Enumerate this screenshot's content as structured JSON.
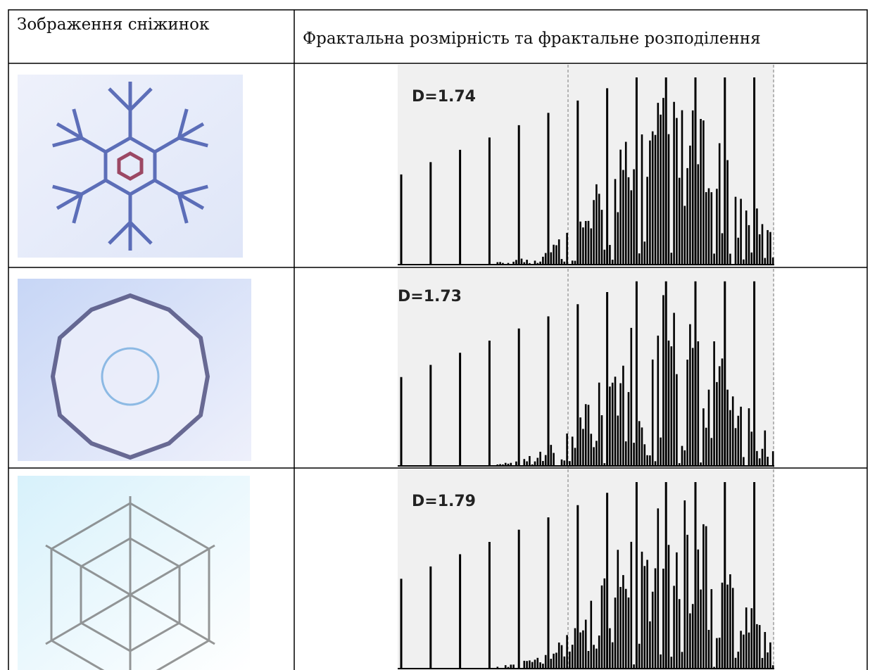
{
  "table": {
    "header": [
      "Зображення сніжинок",
      "Фрактальна розмірність та фрактальне розподілення"
    ],
    "rows": [
      {
        "dimension": "D=1.74"
      },
      {
        "dimension": "D=1.73"
      },
      {
        "dimension": "D=1.79"
      }
    ]
  }
}
